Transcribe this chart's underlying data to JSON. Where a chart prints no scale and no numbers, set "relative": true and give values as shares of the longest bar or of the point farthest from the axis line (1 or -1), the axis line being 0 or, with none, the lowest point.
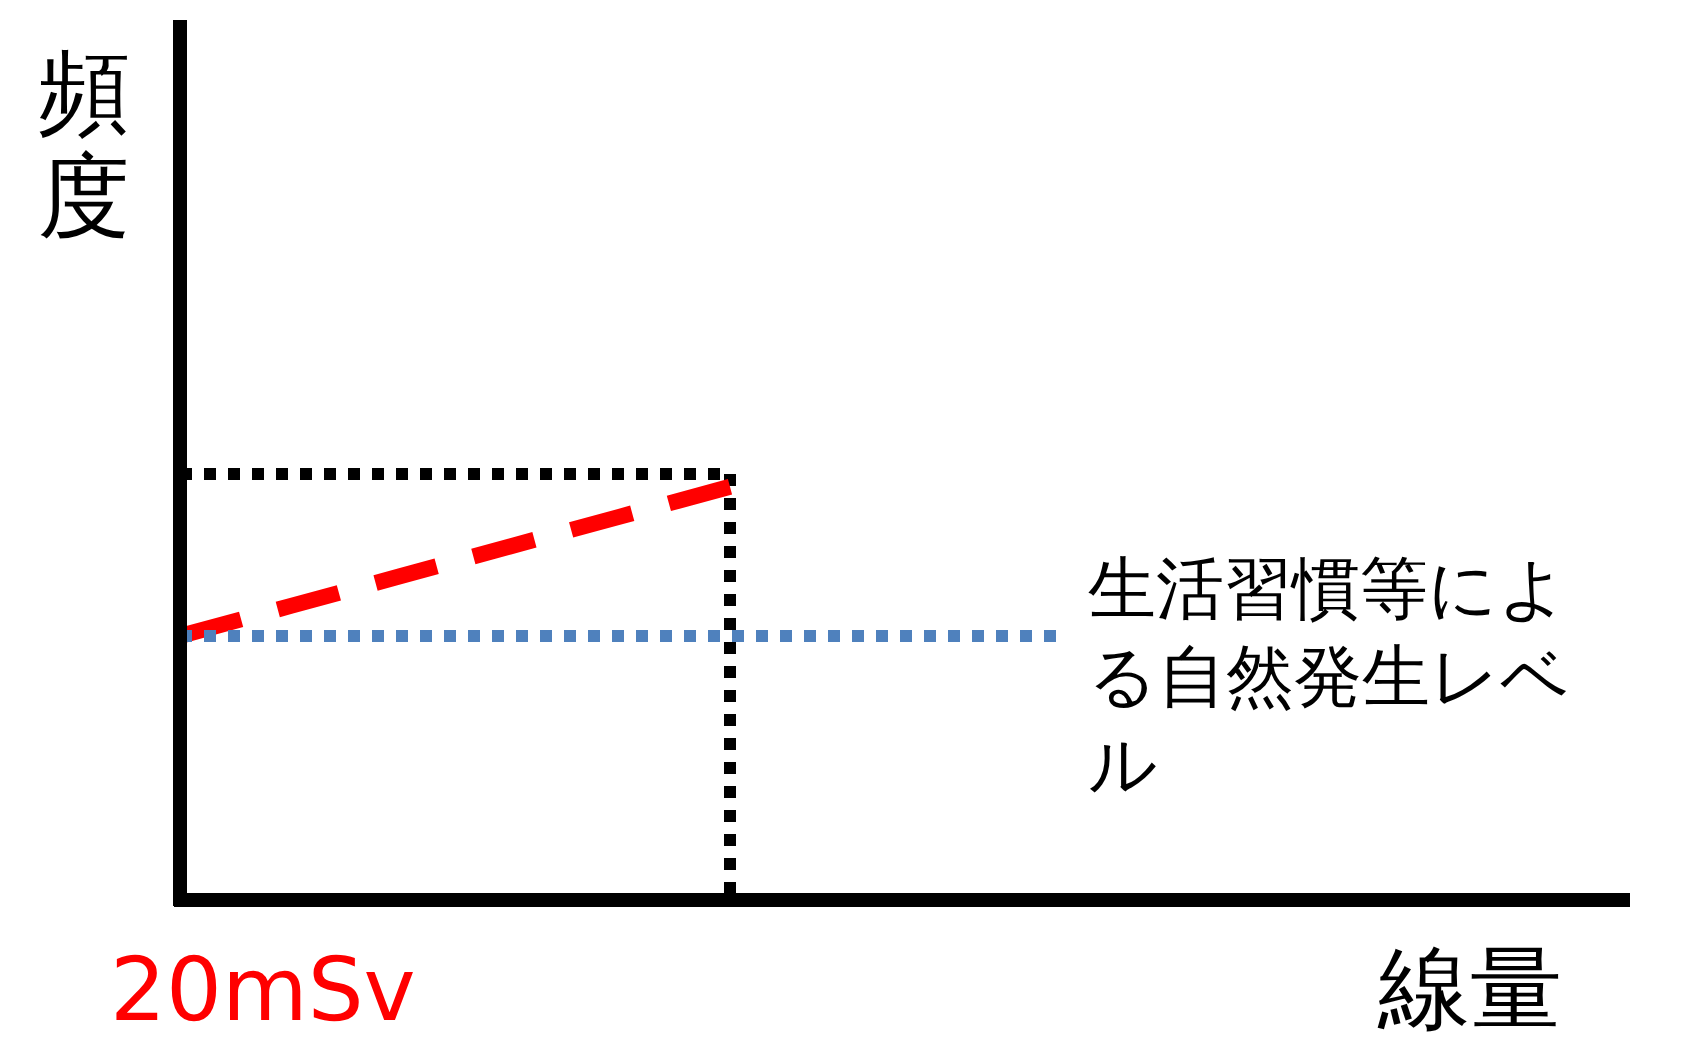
{
  "chart_data": {
    "type": "line",
    "relative": true,
    "xlabel": "線量",
    "ylabel": "頻度",
    "categories": [
      null,
      null,
      null,
      null,
      null,
      null,
      null,
      null,
      null
    ],
    "annotations": [
      "20mSv"
    ],
    "series": [
      {
        "color": "#000000",
        "line_style": "dotted",
        "values": [
          1,
          1,
          1,
          1,
          1,
          1,
          null,
          null,
          null
        ]
      },
      {
        "color": "#ff0000",
        "line_style": "dashed",
        "values": [
          0.62,
          0.69,
          0.76,
          0.83,
          0.9,
          0.97,
          null,
          null,
          null
        ]
      },
      {
        "name": "生活習慣等による自然発生レベル",
        "color": "#4f81bd",
        "line_style": "dotted",
        "values": [
          0.62,
          0.62,
          0.62,
          0.62,
          0.62,
          0.62,
          0.62,
          0.62,
          0.62
        ]
      }
    ]
  }
}
